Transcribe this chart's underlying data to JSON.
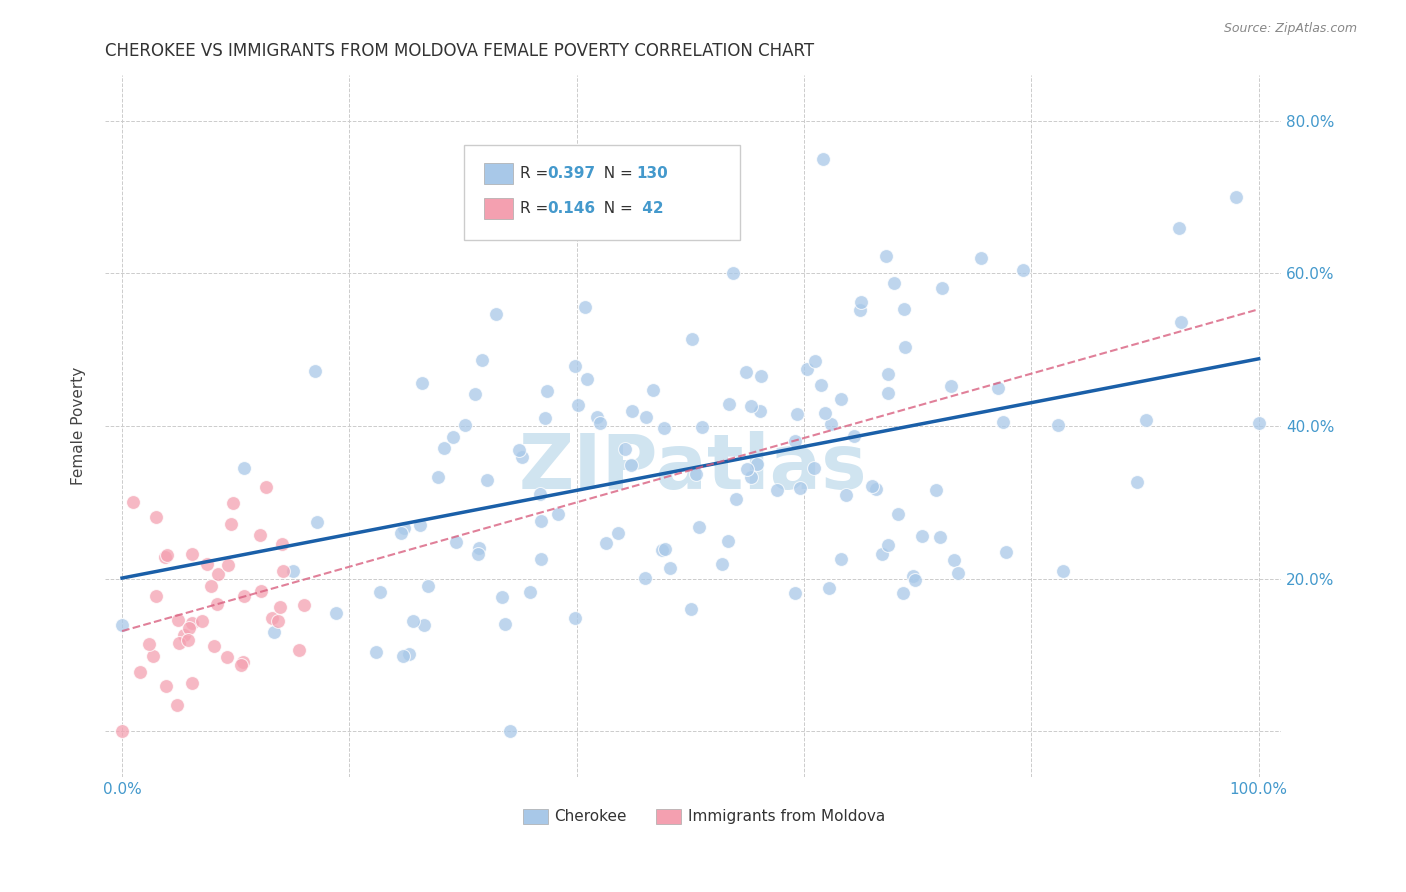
{
  "title": "CHEROKEE VS IMMIGRANTS FROM MOLDOVA FEMALE POVERTY CORRELATION CHART",
  "source": "Source: ZipAtlas.com",
  "ylabel": "Female Poverty",
  "cherokee_color": "#A8C8E8",
  "moldova_color": "#F4A0B0",
  "line_cherokee_color": "#1A5FA8",
  "line_moldova_color": "#D96080",
  "watermark_color": "#D0E4F0",
  "legend_cherokee_label": "Cherokee",
  "legend_moldova_label": "Immigrants from Moldova",
  "R_cherokee": 0.397,
  "N_cherokee": 130,
  "R_moldova": 0.146,
  "N_moldova": 42,
  "background_color": "#FFFFFF",
  "grid_color": "#CCCCCC",
  "title_color": "#333333",
  "axis_color": "#4499CC",
  "legend_text_color": "#333333"
}
